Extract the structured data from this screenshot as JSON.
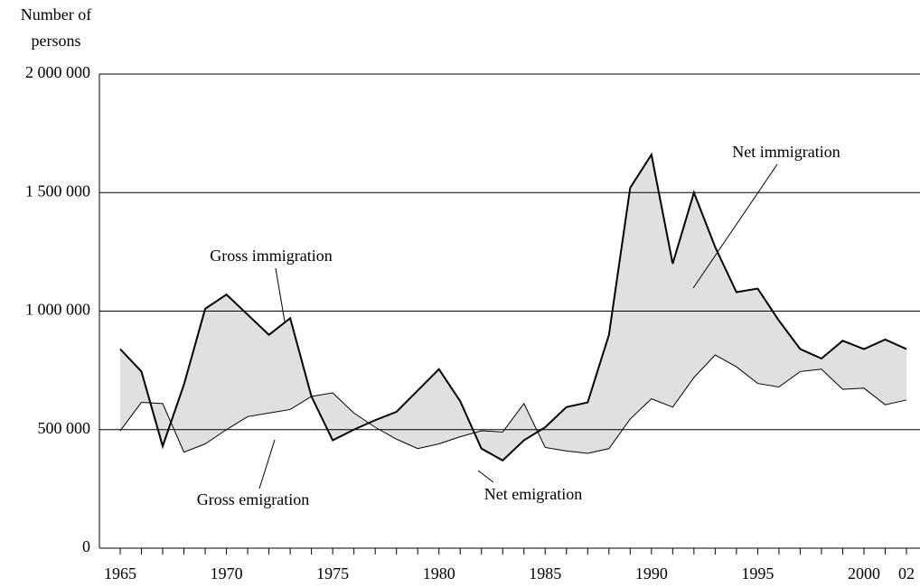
{
  "chart_data": {
    "type": "line",
    "y_label": [
      "Number of",
      "persons"
    ],
    "x": [
      1965,
      1966,
      1967,
      1968,
      1969,
      1970,
      1971,
      1972,
      1973,
      1974,
      1975,
      1976,
      1977,
      1978,
      1979,
      1980,
      1981,
      1982,
      1983,
      1984,
      1985,
      1986,
      1987,
      1988,
      1989,
      1990,
      1991,
      1992,
      1993,
      1994,
      1995,
      1996,
      1997,
      1998,
      1999,
      2000,
      2001,
      2002
    ],
    "series": [
      {
        "name": "Gross immigration",
        "color": "#000000",
        "values": [
          840000,
          745000,
          430000,
          690000,
          1010000,
          1070000,
          985000,
          900000,
          970000,
          640000,
          455000,
          500000,
          540000,
          575000,
          665000,
          755000,
          620000,
          420000,
          370000,
          455000,
          510000,
          595000,
          615000,
          900000,
          1520000,
          1660000,
          1200000,
          1500000,
          1270000,
          1080000,
          1095000,
          960000,
          840000,
          800000,
          875000,
          840000,
          880000,
          840000
        ]
      },
      {
        "name": "Gross emigration",
        "color": "#000000",
        "values": [
          495000,
          615000,
          610000,
          405000,
          440000,
          500000,
          555000,
          570000,
          585000,
          640000,
          655000,
          570000,
          510000,
          460000,
          420000,
          440000,
          470000,
          495000,
          490000,
          610000,
          425000,
          410000,
          400000,
          420000,
          545000,
          630000,
          595000,
          720000,
          815000,
          765000,
          695000,
          680000,
          745000,
          755000,
          670000,
          675000,
          605000,
          625000
        ]
      }
    ],
    "fill_color": "#e0e0e0",
    "annotations": [
      "Net immigration",
      "Net emigration"
    ],
    "xlim": [
      1964,
      2002.6
    ],
    "xticks": [
      1965,
      1970,
      1975,
      1980,
      1985,
      1990,
      1995,
      2000,
      {
        "value": 2002,
        "label": "02"
      }
    ],
    "ylim": [
      0,
      2000000
    ],
    "yticks": [
      {
        "value": 0,
        "label": "0"
      },
      {
        "value": 500000,
        "label": "500 000"
      },
      {
        "value": 1000000,
        "label": "1 000 000"
      },
      {
        "value": 1500000,
        "label": "1 500 000"
      },
      {
        "value": 2000000,
        "label": "2 000 000"
      }
    ],
    "grid": true
  }
}
